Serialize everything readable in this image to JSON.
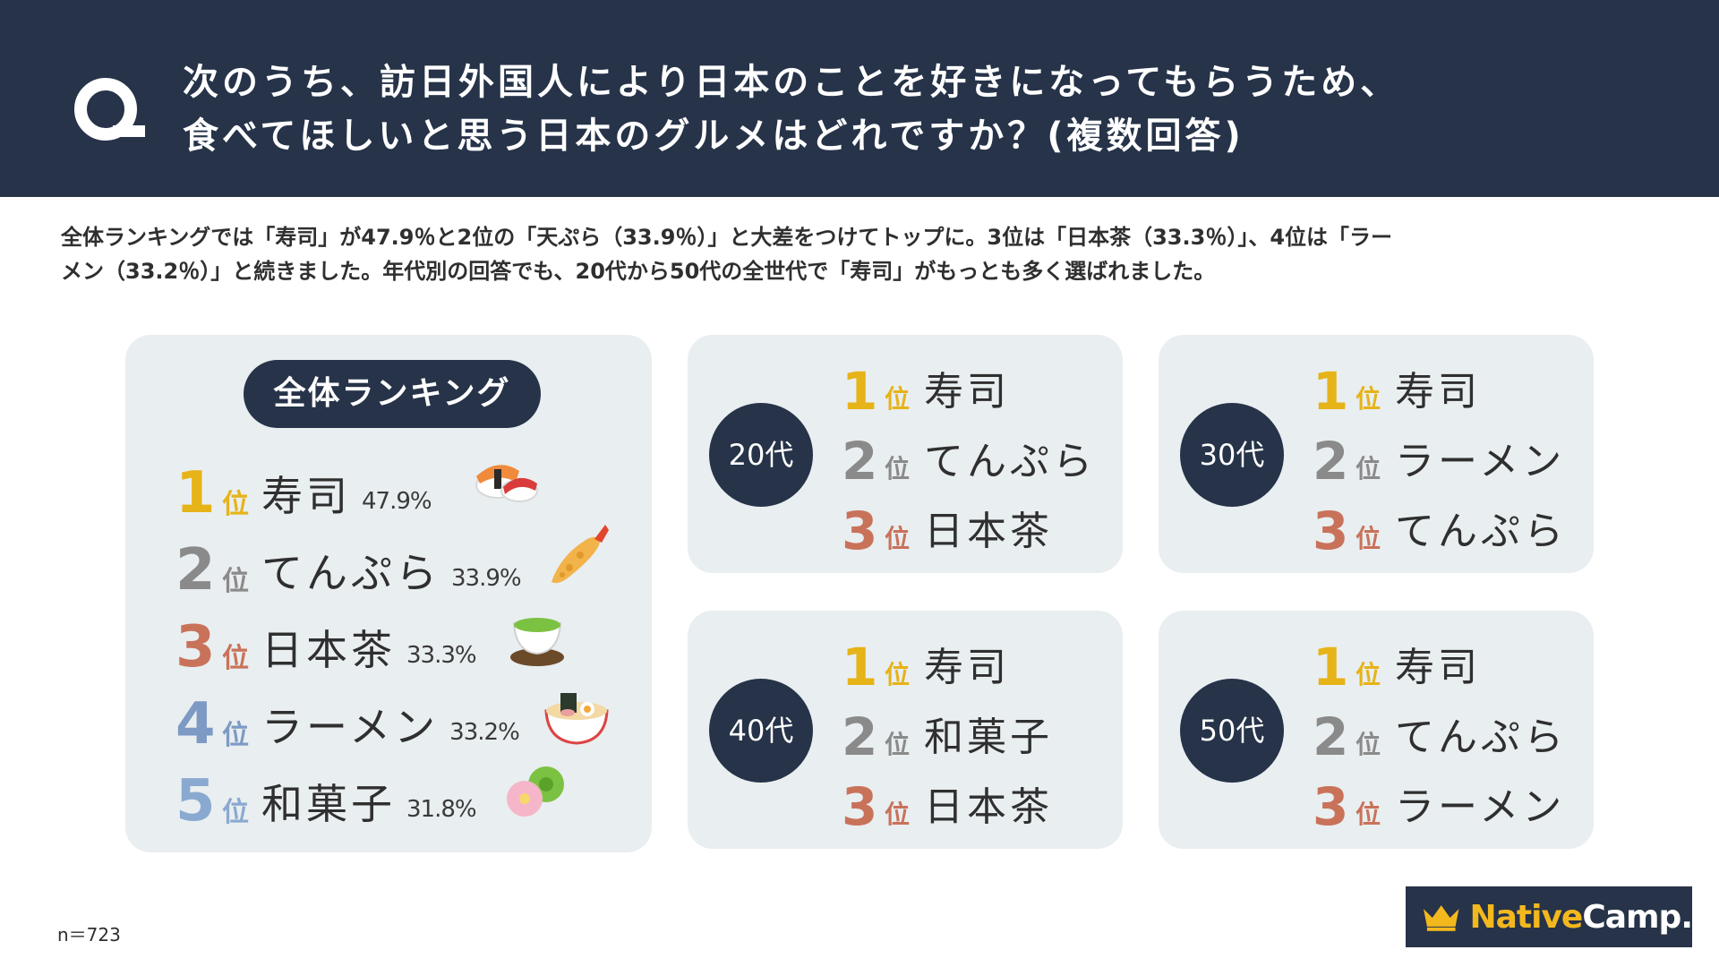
{
  "header": {
    "q_icon": "Q",
    "line1": "次のうち、訪日外国人により日本のことを好きになってもらうため、",
    "line2": "食べてほしいと思う日本のグルメはどれですか？(複数回答)"
  },
  "description": {
    "line1": "全体ランキングでは「寿司」が47.9％と2位の「天ぷら（33.9％）」と大差をつけてトップに。3位は「日本茶（33.3％）」、4位は「ラー",
    "line2": "メン（33.2％）」と続きました。年代別の回答でも、20代から50代の全世代で「寿司」がもっとも多く選ばれました。"
  },
  "overall": {
    "title": "全体ランキング",
    "rank_suffix": "位",
    "items": [
      {
        "rank": "1",
        "name": "寿司",
        "pct": "47.9%",
        "icon": "sushi-icon"
      },
      {
        "rank": "2",
        "name": "てんぷら",
        "pct": "33.9%",
        "icon": "tempura-icon"
      },
      {
        "rank": "3",
        "name": "日本茶",
        "pct": "33.3%",
        "icon": "green-tea-icon"
      },
      {
        "rank": "4",
        "name": "ラーメン",
        "pct": "33.2%",
        "icon": "ramen-icon"
      },
      {
        "rank": "5",
        "name": "和菓子",
        "pct": "31.8%",
        "icon": "wagashi-icon"
      }
    ]
  },
  "age_groups": {
    "g20": {
      "label": "20代",
      "items": [
        {
          "rank": "1",
          "name": "寿司"
        },
        {
          "rank": "2",
          "name": "てんぷら"
        },
        {
          "rank": "3",
          "name": "日本茶"
        }
      ]
    },
    "g30": {
      "label": "30代",
      "items": [
        {
          "rank": "1",
          "name": "寿司"
        },
        {
          "rank": "2",
          "name": "ラーメン"
        },
        {
          "rank": "3",
          "name": "てんぷら"
        }
      ]
    },
    "g40": {
      "label": "40代",
      "items": [
        {
          "rank": "1",
          "name": "寿司"
        },
        {
          "rank": "2",
          "name": "和菓子"
        },
        {
          "rank": "3",
          "name": "日本茶"
        }
      ]
    },
    "g50": {
      "label": "50代",
      "items": [
        {
          "rank": "1",
          "name": "寿司"
        },
        {
          "rank": "2",
          "name": "てんぷら"
        },
        {
          "rank": "3",
          "name": "ラーメン"
        }
      ]
    }
  },
  "footer": {
    "sample_size": "n＝723",
    "logo_part1": "Native",
    "logo_part2": "Camp."
  },
  "colors": {
    "navy": "#263349",
    "panel": "#e9eef0",
    "gold": "#e6b318",
    "gray": "#8a8a8a",
    "copper": "#c9725a",
    "blue": "#7d9ac4"
  }
}
